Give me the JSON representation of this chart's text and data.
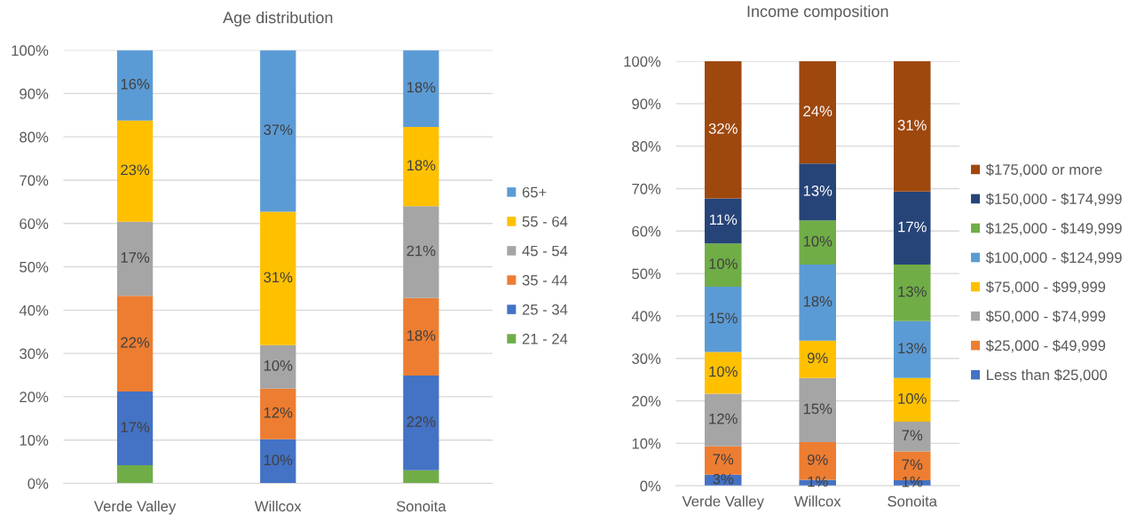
{
  "chart_data": [
    {
      "type": "bar",
      "title": "Age distribution",
      "stacked": true,
      "grid": "y",
      "legend": "right",
      "categories": [
        "Verde Valley",
        "Willcox",
        "Sonoita"
      ],
      "ylim": [
        0,
        100
      ],
      "yticks": [
        {
          "value": 0,
          "label": "0%"
        },
        {
          "value": 10,
          "label": "10%"
        },
        {
          "value": 20,
          "label": "20%"
        },
        {
          "value": 30,
          "label": "30%"
        },
        {
          "value": 40,
          "label": "40%"
        },
        {
          "value": 50,
          "label": "50%"
        },
        {
          "value": 60,
          "label": "60%"
        },
        {
          "value": 70,
          "label": "70%"
        },
        {
          "value": 80,
          "label": "80%"
        },
        {
          "value": 90,
          "label": "90%"
        },
        {
          "value": 100,
          "label": "100%"
        }
      ],
      "series": [
        {
          "name": "21 - 24",
          "color": "#70ad47",
          "values": [
            4.2,
            0,
            3.0
          ],
          "value_labels": [
            null,
            null,
            null
          ]
        },
        {
          "name": "25 - 34",
          "color": "#4472c4",
          "values": [
            17.0,
            10.2,
            21.9
          ],
          "value_labels": [
            "17%",
            "10%",
            "22%"
          ]
        },
        {
          "name": "35 - 44",
          "color": "#ed7d31",
          "values": [
            22.1,
            11.7,
            17.9
          ],
          "value_labels": [
            "22%",
            "12%",
            "18%"
          ]
        },
        {
          "name": "45 - 54",
          "color": "#a5a5a5",
          "values": [
            17.1,
            10.0,
            21.2
          ],
          "value_labels": [
            "17%",
            "10%",
            "21%"
          ]
        },
        {
          "name": "55 - 64",
          "color": "#ffc000",
          "values": [
            23.4,
            30.8,
            18.3
          ],
          "value_labels": [
            "23%",
            "31%",
            "18%"
          ]
        },
        {
          "name": "65+",
          "color": "#5b9bd5",
          "values": [
            16.2,
            37.3,
            17.7
          ],
          "value_labels": [
            "16%",
            "37%",
            "18%"
          ]
        }
      ]
    },
    {
      "type": "bar",
      "title": "Income composition",
      "stacked": true,
      "grid": "y",
      "legend": "right",
      "categories": [
        "Verde Valley",
        "Willcox",
        "Sonoita"
      ],
      "ylim": [
        0,
        100
      ],
      "yticks": [
        {
          "value": 0,
          "label": "0%"
        },
        {
          "value": 10,
          "label": "10%"
        },
        {
          "value": 20,
          "label": "20%"
        },
        {
          "value": 30,
          "label": "30%"
        },
        {
          "value": 40,
          "label": "40%"
        },
        {
          "value": 50,
          "label": "50%"
        },
        {
          "value": 60,
          "label": "60%"
        },
        {
          "value": 70,
          "label": "70%"
        },
        {
          "value": 80,
          "label": "80%"
        },
        {
          "value": 90,
          "label": "90%"
        },
        {
          "value": 100,
          "label": "100%"
        }
      ],
      "series": [
        {
          "name": "Less than $25,000",
          "color": "#4472c4",
          "values": [
            2.6,
            1.4,
            1.3
          ],
          "value_labels": [
            "3%",
            "1%",
            "1%"
          ]
        },
        {
          "name": "$25,000 - $49,999",
          "color": "#ed7d31",
          "values": [
            6.7,
            8.9,
            6.8
          ],
          "value_labels": [
            "7%",
            "9%",
            "7%"
          ]
        },
        {
          "name": "$50,000 - $74,999",
          "color": "#a5a5a5",
          "values": [
            12.4,
            15.1,
            7.0
          ],
          "value_labels": [
            "12%",
            "15%",
            "7%"
          ]
        },
        {
          "name": "$75,000 - $99,999",
          "color": "#ffc000",
          "values": [
            9.8,
            8.8,
            10.3
          ],
          "value_labels": [
            "10%",
            "9%",
            "10%"
          ]
        },
        {
          "name": "$100,000 - $124,999",
          "color": "#5b9bd5",
          "values": [
            15.4,
            17.9,
            13.4
          ],
          "value_labels": [
            "15%",
            "18%",
            "13%"
          ]
        },
        {
          "name": "$125,000 - $149,999",
          "color": "#70ad47",
          "values": [
            10.2,
            10.4,
            13.3
          ],
          "value_labels": [
            "10%",
            "10%",
            "13%"
          ]
        },
        {
          "name": "$150,000 - $174,999",
          "color": "#264478",
          "values": [
            10.6,
            13.4,
            17.2
          ],
          "value_labels": [
            "11%",
            "13%",
            "17%"
          ]
        },
        {
          "name": "$175,000 or more",
          "color": "#9e480e",
          "values": [
            32.3,
            24.1,
            30.7
          ],
          "value_labels": [
            "32%",
            "24%",
            "31%"
          ]
        }
      ]
    }
  ]
}
